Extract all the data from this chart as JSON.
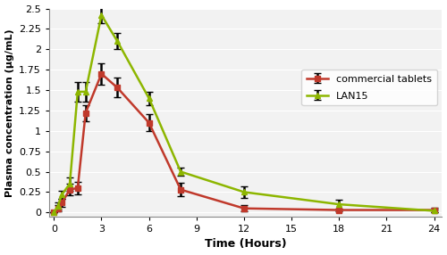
{
  "time_points": [
    0,
    0.25,
    0.5,
    1,
    1.5,
    2,
    3,
    4,
    6,
    8,
    12,
    18,
    24
  ],
  "commercial_mean": [
    0,
    0.05,
    0.12,
    0.28,
    0.3,
    1.22,
    1.7,
    1.53,
    1.1,
    0.28,
    0.05,
    0.03,
    0.03
  ],
  "commercial_se": [
    0,
    0.04,
    0.05,
    0.07,
    0.08,
    0.1,
    0.13,
    0.12,
    0.1,
    0.08,
    0.04,
    0.02,
    0.03
  ],
  "lan15_mean": [
    0,
    0.08,
    0.22,
    0.35,
    1.48,
    1.48,
    2.42,
    2.1,
    1.4,
    0.5,
    0.25,
    0.1,
    0.02
  ],
  "lan15_se": [
    0,
    0.04,
    0.05,
    0.08,
    0.12,
    0.12,
    0.1,
    0.1,
    0.08,
    0.05,
    0.07,
    0.06,
    0.02
  ],
  "commercial_color": "#c0392b",
  "lan15_color": "#8db600",
  "xlabel": "Time (Hours)",
  "ylabel": "Plasma concentration (μg/mL)",
  "xlim": [
    -0.3,
    24.5
  ],
  "ylim": [
    -0.05,
    2.5
  ],
  "xticks": [
    0,
    3,
    6,
    9,
    12,
    15,
    18,
    21,
    24
  ],
  "ytick_vals": [
    0,
    0.25,
    0.5,
    0.75,
    1,
    1.25,
    1.5,
    1.75,
    2,
    2.25,
    2.5
  ],
  "ytick_labels": [
    "0",
    "0.25",
    "0.5",
    "0.75",
    "1",
    "1.25",
    "1.5",
    "1.75",
    "2",
    "2.25",
    "2.5"
  ],
  "legend_commercial": "commercial tablets",
  "legend_lan15": "LAN15",
  "marker_commercial": "s",
  "marker_lan15": "^",
  "ecolor": "black",
  "background_color": "#f0f0f0"
}
